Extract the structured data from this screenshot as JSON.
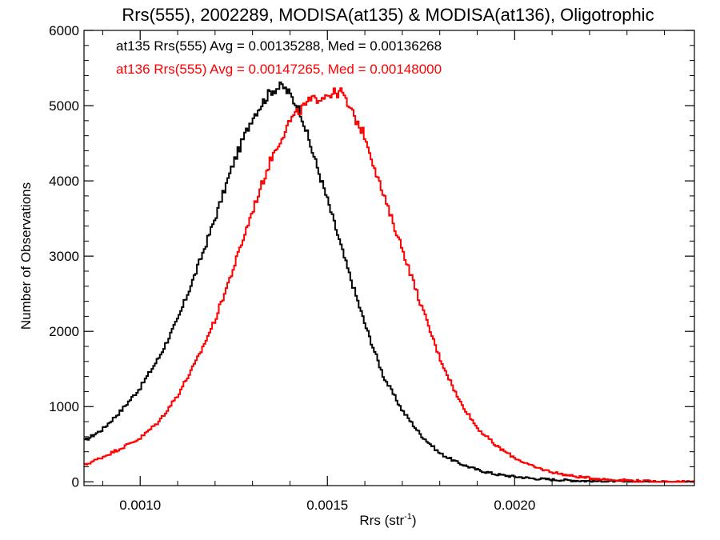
{
  "chart_data": {
    "type": "line",
    "title": "Rrs(555), 2002289, MODISA(at135) & MODISA(at136), Oligotrophic",
    "xlabel": "Rrs (str",
    "xlabel_sup": "-1",
    "xlabel_end": ")",
    "ylabel": "Number of Observations",
    "xlim": [
      0.00085,
      0.00248
    ],
    "ylim": [
      -50,
      6000
    ],
    "xticks": [
      0.001,
      0.0015,
      0.002
    ],
    "xtick_labels": [
      "0.0010",
      "0.0015",
      "0.0020"
    ],
    "yticks": [
      0,
      1000,
      2000,
      3000,
      4000,
      5000,
      6000
    ],
    "ytick_labels": [
      "0",
      "1000",
      "2000",
      "3000",
      "4000",
      "5000",
      "6000"
    ],
    "grid": false,
    "legend_position": "top-left",
    "series": [
      {
        "legend": "at135 Rrs(555) Avg = 0.00135288, Med = 0.00136268",
        "color": "#000000",
        "points": [
          [
            0.00085,
            540
          ],
          [
            0.0009,
            700
          ],
          [
            0.00095,
            950
          ],
          [
            0.001,
            1250
          ],
          [
            0.00105,
            1650
          ],
          [
            0.0011,
            2150
          ],
          [
            0.00115,
            2800
          ],
          [
            0.0012,
            3500
          ],
          [
            0.00125,
            4250
          ],
          [
            0.0013,
            4850
          ],
          [
            0.00135,
            5200
          ],
          [
            0.00138,
            5260
          ],
          [
            0.0014,
            5150
          ],
          [
            0.00143,
            4900
          ],
          [
            0.00145,
            4550
          ],
          [
            0.0015,
            3750
          ],
          [
            0.00155,
            2900
          ],
          [
            0.0016,
            2100
          ],
          [
            0.00165,
            1400
          ],
          [
            0.0017,
            950
          ],
          [
            0.00175,
            620
          ],
          [
            0.0018,
            380
          ],
          [
            0.00185,
            250
          ],
          [
            0.0019,
            160
          ],
          [
            0.00195,
            100
          ],
          [
            0.002,
            70
          ],
          [
            0.00205,
            45
          ],
          [
            0.0021,
            30
          ],
          [
            0.00215,
            20
          ],
          [
            0.0022,
            10
          ],
          [
            0.0023,
            0
          ]
        ]
      },
      {
        "legend": "at136 Rrs(555) Avg = 0.00147265, Med = 0.00148000",
        "color": "#ff0000",
        "points": [
          [
            0.00085,
            220
          ],
          [
            0.0009,
            330
          ],
          [
            0.00095,
            450
          ],
          [
            0.001,
            580
          ],
          [
            0.00105,
            800
          ],
          [
            0.0011,
            1150
          ],
          [
            0.00115,
            1600
          ],
          [
            0.0012,
            2150
          ],
          [
            0.00125,
            2850
          ],
          [
            0.0013,
            3600
          ],
          [
            0.00135,
            4300
          ],
          [
            0.0014,
            4800
          ],
          [
            0.00145,
            5050
          ],
          [
            0.0015,
            5150
          ],
          [
            0.00154,
            5180
          ],
          [
            0.00155,
            5050
          ],
          [
            0.0016,
            4600
          ],
          [
            0.00165,
            3800
          ],
          [
            0.0017,
            3100
          ],
          [
            0.00175,
            2350
          ],
          [
            0.0018,
            1650
          ],
          [
            0.00185,
            1100
          ],
          [
            0.0019,
            720
          ],
          [
            0.00195,
            480
          ],
          [
            0.002,
            320
          ],
          [
            0.00205,
            200
          ],
          [
            0.0021,
            130
          ],
          [
            0.00215,
            80
          ],
          [
            0.0022,
            50
          ],
          [
            0.00225,
            30
          ],
          [
            0.0023,
            20
          ],
          [
            0.00235,
            10
          ],
          [
            0.0024,
            0
          ],
          [
            0.00248,
            0
          ]
        ]
      }
    ]
  }
}
